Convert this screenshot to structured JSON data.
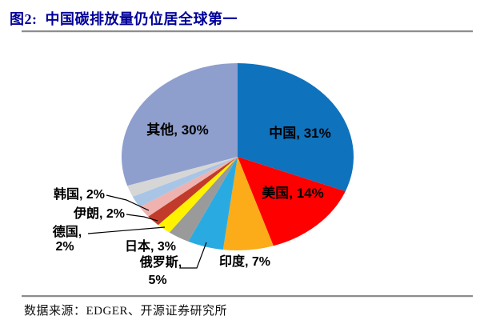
{
  "header": {
    "title": "图2:  中国碳排放量仍位居全球第一"
  },
  "footer": {
    "source": "数据来源：EDGER、开源证券研究所"
  },
  "chart_data": {
    "type": "pie",
    "title": "中国碳排放量仍位居全球第一",
    "value_unit": "percent share of global carbon emissions",
    "start_angle_deg": 0,
    "direction": "clockwise",
    "legend": "none (labels on/next to slices with leader lines)",
    "slices": [
      {
        "name": "中国",
        "value": 31,
        "color": "#0E72BD",
        "label_lines": [
          "中国, 31%"
        ],
        "label_pos": "inside"
      },
      {
        "name": "美国",
        "value": 14,
        "color": "#FE0000",
        "label_lines": [
          "美国, 14%"
        ],
        "label_pos": "inside"
      },
      {
        "name": "印度",
        "value": 7,
        "color": "#FBAC18",
        "label_lines": [
          "印度, 7%"
        ],
        "label_pos": "outside"
      },
      {
        "name": "俄罗斯",
        "value": 5,
        "color": "#29ABE2",
        "label_lines": [
          "俄罗斯,",
          "5%"
        ],
        "label_pos": "outside"
      },
      {
        "name": "日本",
        "value": 3,
        "color": "#9A9A9A",
        "label_lines": [
          "日本, 3%"
        ],
        "label_pos": "outside"
      },
      {
        "name": "德国",
        "value": 2,
        "color": "#FFF200",
        "label_lines": [
          "德国,",
          "2%"
        ],
        "label_pos": "outside"
      },
      {
        "name": "伊朗",
        "value": 2,
        "color": "#C23B2A",
        "label_lines": [
          "伊朗, 2%"
        ],
        "label_pos": "outside"
      },
      {
        "name": "韩国",
        "value": 2,
        "color": "#EFB2AF",
        "label_lines": [
          "韩国, 2%"
        ],
        "label_pos": "outside"
      },
      {
        "name": "unlabeled-1",
        "value": 2,
        "color": "#A8C5E6",
        "label_lines": [],
        "label_pos": "none",
        "estimated": true
      },
      {
        "name": "unlabeled-2",
        "value": 2,
        "color": "#D6D6D6",
        "label_lines": [],
        "label_pos": "none",
        "estimated": true
      },
      {
        "name": "其他",
        "value": 30,
        "color": "#8E9FCD",
        "label_lines": [
          "其他, 30%"
        ],
        "label_pos": "inside"
      }
    ]
  }
}
